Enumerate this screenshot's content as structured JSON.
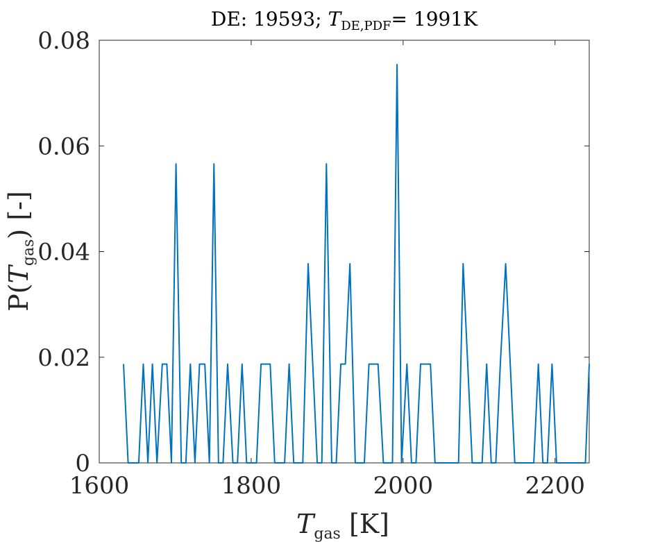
{
  "chart_data": {
    "type": "line",
    "title": {
      "prefix": "DE: 19593; ",
      "var": "T",
      "sub": "DE,PDF",
      "suffix": "= 1991K"
    },
    "xlabel": {
      "var": "T",
      "sub": "gas",
      "unit": " [K]"
    },
    "ylabel": {
      "pre": "P(",
      "var": "T",
      "sub": "gas",
      "post": ") [-]"
    },
    "xlim": [
      1600,
      2245
    ],
    "ylim": [
      0,
      0.08
    ],
    "xticks": [
      1600,
      1800,
      2000,
      2200
    ],
    "xtick_labels": [
      "1600",
      "1800",
      "2000",
      "2200"
    ],
    "yticks": [
      0,
      0.02,
      0.04,
      0.06,
      0.08
    ],
    "ytick_labels": [
      "0",
      "0.02",
      "0.04",
      "0.06",
      "0.08"
    ],
    "grid": false,
    "line_color": "#0072BD",
    "series": [
      {
        "x": [
          1632,
          1638,
          1645,
          1652,
          1658,
          1664,
          1670,
          1676,
          1683,
          1689,
          1695,
          1701,
          1708,
          1714,
          1720,
          1726,
          1732,
          1739,
          1745,
          1751,
          1757,
          1763,
          1769,
          1776,
          1782,
          1788,
          1794,
          1800,
          1807,
          1813,
          1819,
          1825,
          1831,
          1837,
          1844,
          1850,
          1856,
          1862,
          1868,
          1875,
          1881,
          1887,
          1893,
          1899,
          1906,
          1912,
          1918,
          1924,
          1930,
          1937,
          1943,
          1949,
          1955,
          1961,
          1967,
          1974,
          1980,
          1986,
          1992,
          1998,
          2005,
          2011,
          2017,
          2023,
          2029,
          2036,
          2042,
          2048,
          2054,
          2060,
          2066,
          2073,
          2079,
          2085,
          2091,
          2097,
          2104,
          2110,
          2116,
          2122,
          2128,
          2135,
          2141,
          2147,
          2153,
          2159,
          2165,
          2172,
          2178,
          2184,
          2190,
          2196,
          2202,
          2209,
          2215,
          2221,
          2227,
          2233,
          2240,
          2246
        ],
        "y": [
          0.0187,
          0,
          0,
          0,
          0.0187,
          0,
          0.0187,
          0,
          0.0187,
          0.0187,
          0,
          0.0566,
          0,
          0,
          0.0187,
          0,
          0.0187,
          0.0187,
          0,
          0.0566,
          0,
          0,
          0.0187,
          0,
          0,
          0.0187,
          0,
          0,
          0,
          0.0187,
          0.0187,
          0.0187,
          0,
          0,
          0,
          0.0187,
          0,
          0,
          0,
          0.0377,
          0.0187,
          0,
          0,
          0.0566,
          0,
          0,
          0.0187,
          0.0187,
          0.0377,
          0,
          0,
          0,
          0.0187,
          0.0187,
          0.0187,
          0,
          0,
          0,
          0.0754,
          0,
          0.0187,
          0,
          0,
          0.0187,
          0.0187,
          0.0187,
          0,
          0,
          0,
          0,
          0,
          0,
          0.0377,
          0.0187,
          0,
          0,
          0,
          0.0187,
          0,
          0,
          0.0187,
          0.0377,
          0.0187,
          0,
          0,
          0,
          0,
          0,
          0.0187,
          0,
          0,
          0.0187,
          0,
          0,
          0,
          0,
          0,
          0,
          0,
          0.0187
        ]
      }
    ]
  }
}
